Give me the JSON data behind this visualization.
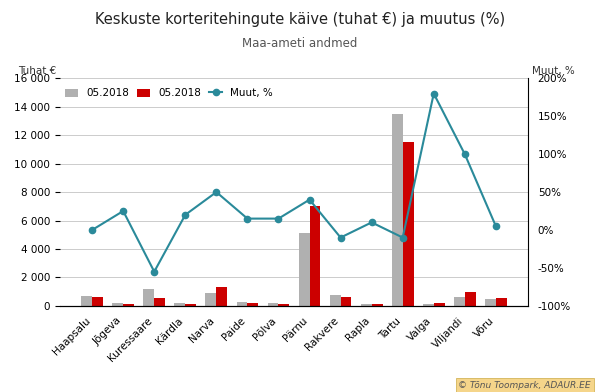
{
  "categories": [
    "Haapsalu",
    "Jõgeva",
    "Kuressaare",
    "Kärdla",
    "Narva",
    "Paide",
    "Põlva",
    "Pärnu",
    "Rakvere",
    "Rapla",
    "Tartu",
    "Valga",
    "Viljandi",
    "Võru"
  ],
  "bars_prev": [
    680,
    190,
    1200,
    175,
    900,
    250,
    175,
    5100,
    780,
    90,
    13500,
    90,
    600,
    490
  ],
  "bars_curr": [
    640,
    140,
    550,
    95,
    1300,
    195,
    140,
    7000,
    640,
    140,
    11500,
    175,
    1000,
    540
  ],
  "muut_pct": [
    0,
    25,
    -55,
    20,
    50,
    15,
    15,
    40,
    -10,
    10,
    -10,
    180,
    100,
    5
  ],
  "bar_color_prev": "#b0b0b0",
  "bar_color_curr": "#cc0000",
  "line_color": "#2a8a9a",
  "title": "Keskuste korteritehingute käive (tuhat €) ja muutus (%)",
  "subtitle": "Maa-ameti andmed",
  "ylabel_left": "Tuhat €",
  "ylabel_right": "Muut, %",
  "legend_prev": "05.2018",
  "legend_curr": "05.2018",
  "legend_line": "Muut, %",
  "ylim_left": [
    0,
    16000
  ],
  "ylim_right": [
    -100,
    200
  ],
  "yticks_left": [
    0,
    2000,
    4000,
    6000,
    8000,
    10000,
    12000,
    14000,
    16000
  ],
  "yticks_right": [
    -100,
    -50,
    0,
    50,
    100,
    150,
    200
  ],
  "background_color": "#ffffff",
  "watermark": "© Tõnu Toompark, ADAUR.EE"
}
